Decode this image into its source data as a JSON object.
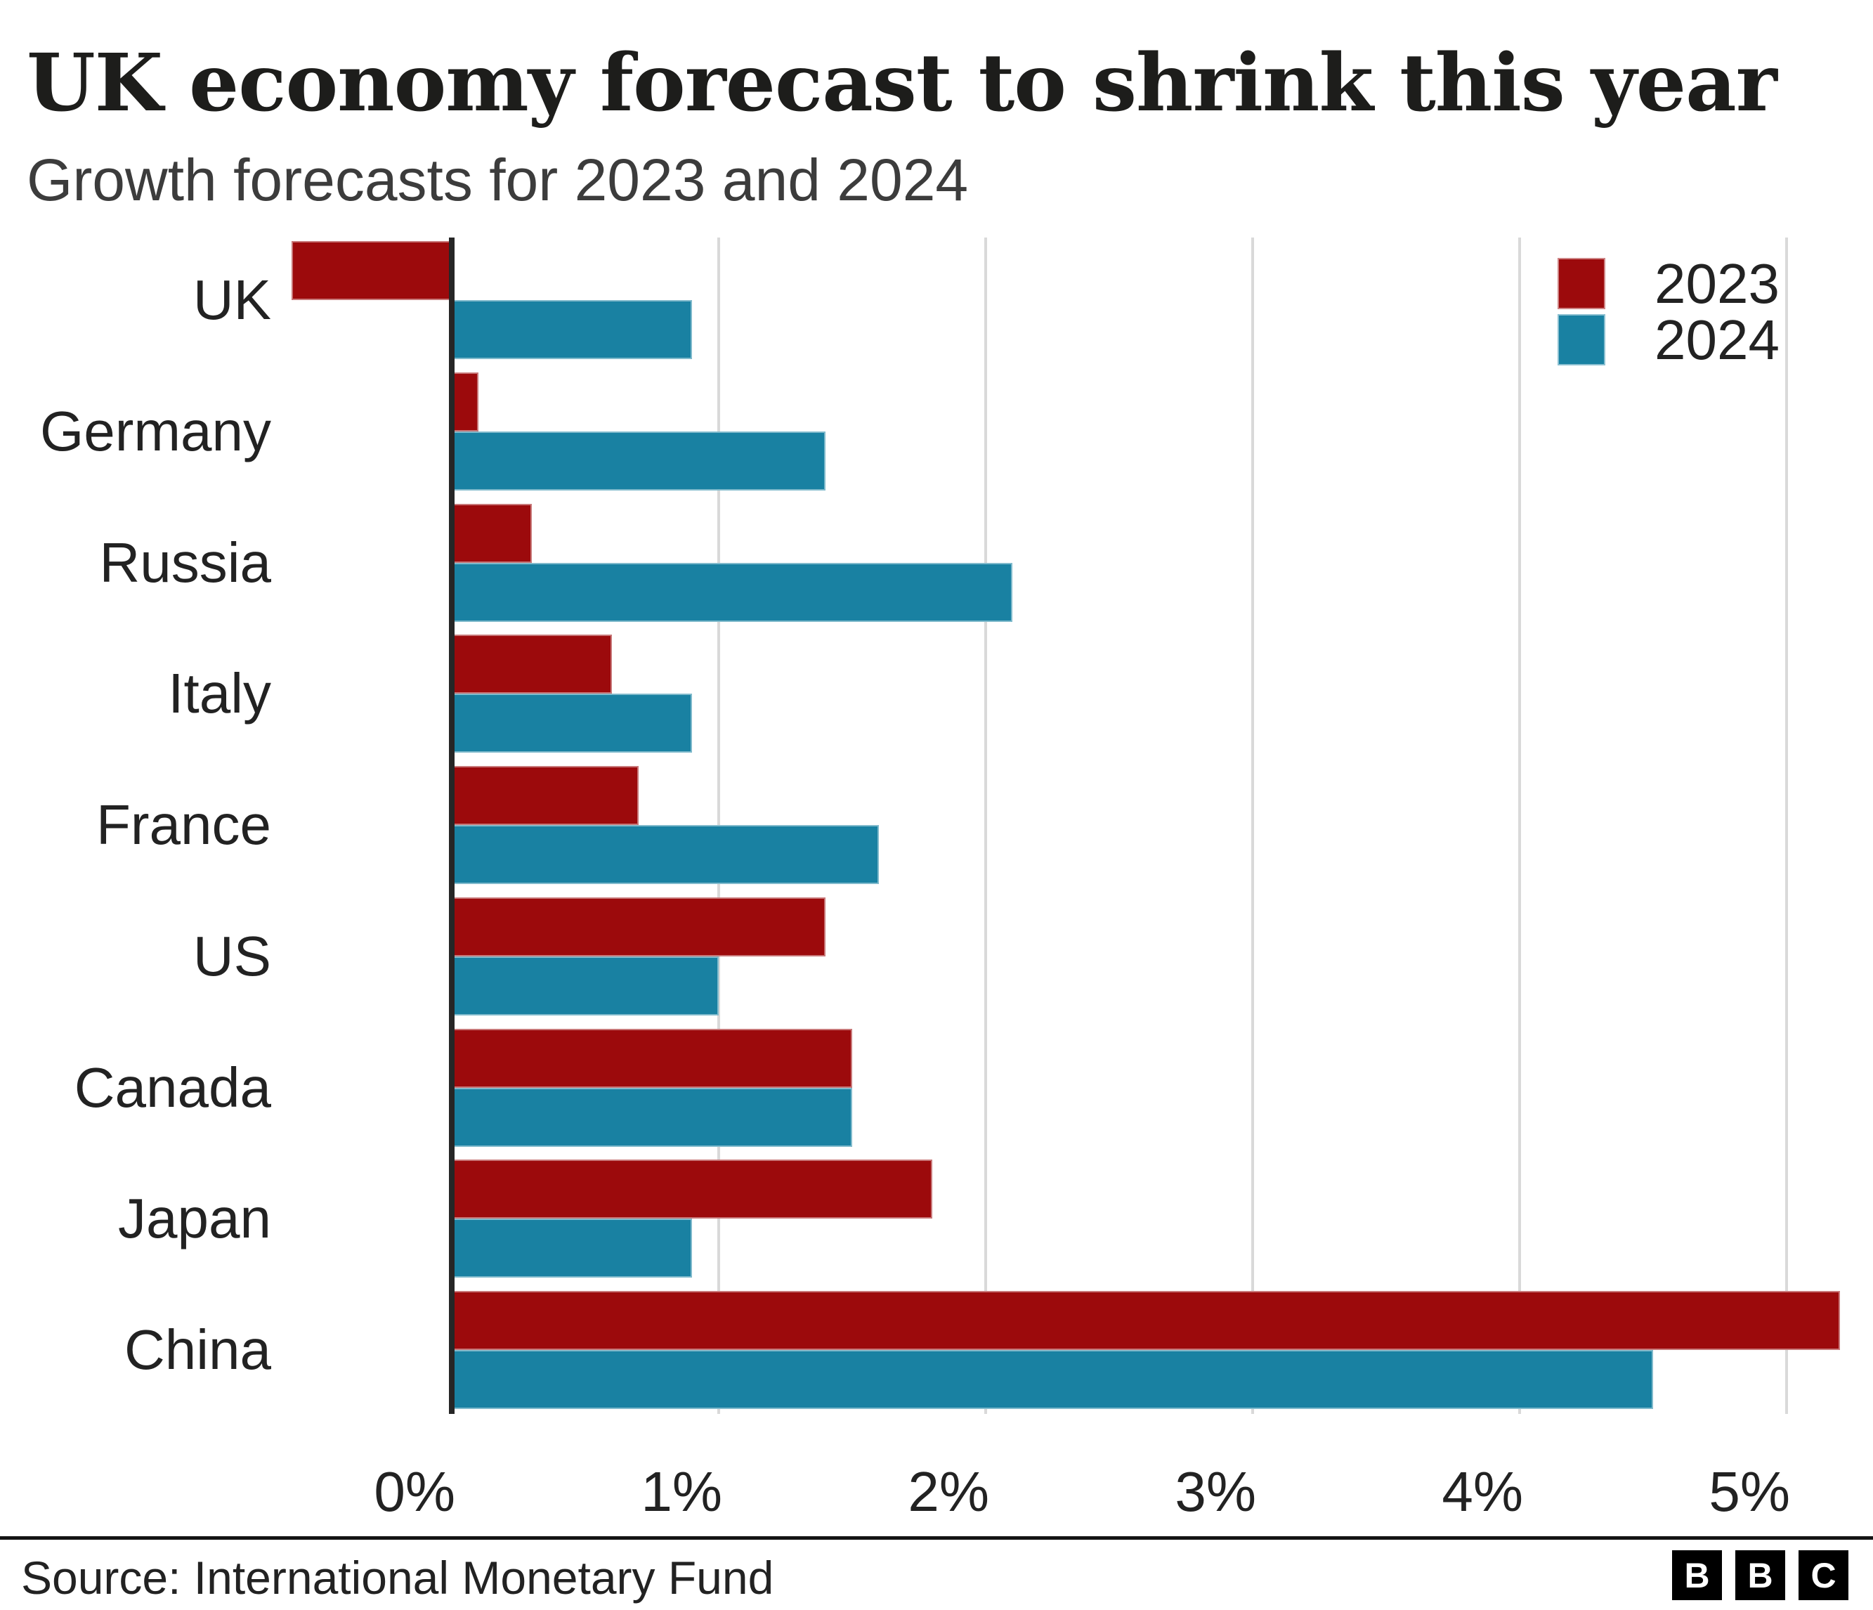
{
  "header": {
    "title": "UK economy forecast to shrink this year",
    "subtitle": "Growth forecasts for 2023 and 2024"
  },
  "chart_data": {
    "type": "bar",
    "orientation": "horizontal",
    "title": "UK economy forecast to shrink this year",
    "subtitle": "Growth forecasts for 2023 and 2024",
    "categories": [
      "UK",
      "Germany",
      "Russia",
      "Italy",
      "France",
      "US",
      "Canada",
      "Japan",
      "China"
    ],
    "series": [
      {
        "name": "2023",
        "color": "#9c0a0c",
        "values": [
          -0.6,
          0.1,
          0.3,
          0.6,
          0.7,
          1.4,
          1.5,
          1.8,
          5.2
        ]
      },
      {
        "name": "2024",
        "color": "#1981a2",
        "values": [
          0.9,
          1.4,
          2.1,
          0.9,
          1.6,
          1.0,
          1.5,
          0.9,
          4.5
        ]
      }
    ],
    "x_tick_labels": [
      "0%",
      "1%",
      "2%",
      "3%",
      "4%",
      "5%"
    ],
    "x_tick_values": [
      0,
      1,
      2,
      3,
      4,
      5
    ],
    "xlim": [
      -0.65,
      5.3
    ],
    "grid": true,
    "legend_position": "top-right",
    "unit": "percent"
  },
  "footer": {
    "source": "Source: International Monetary Fund",
    "logo_letters": [
      "B",
      "B",
      "C"
    ]
  }
}
